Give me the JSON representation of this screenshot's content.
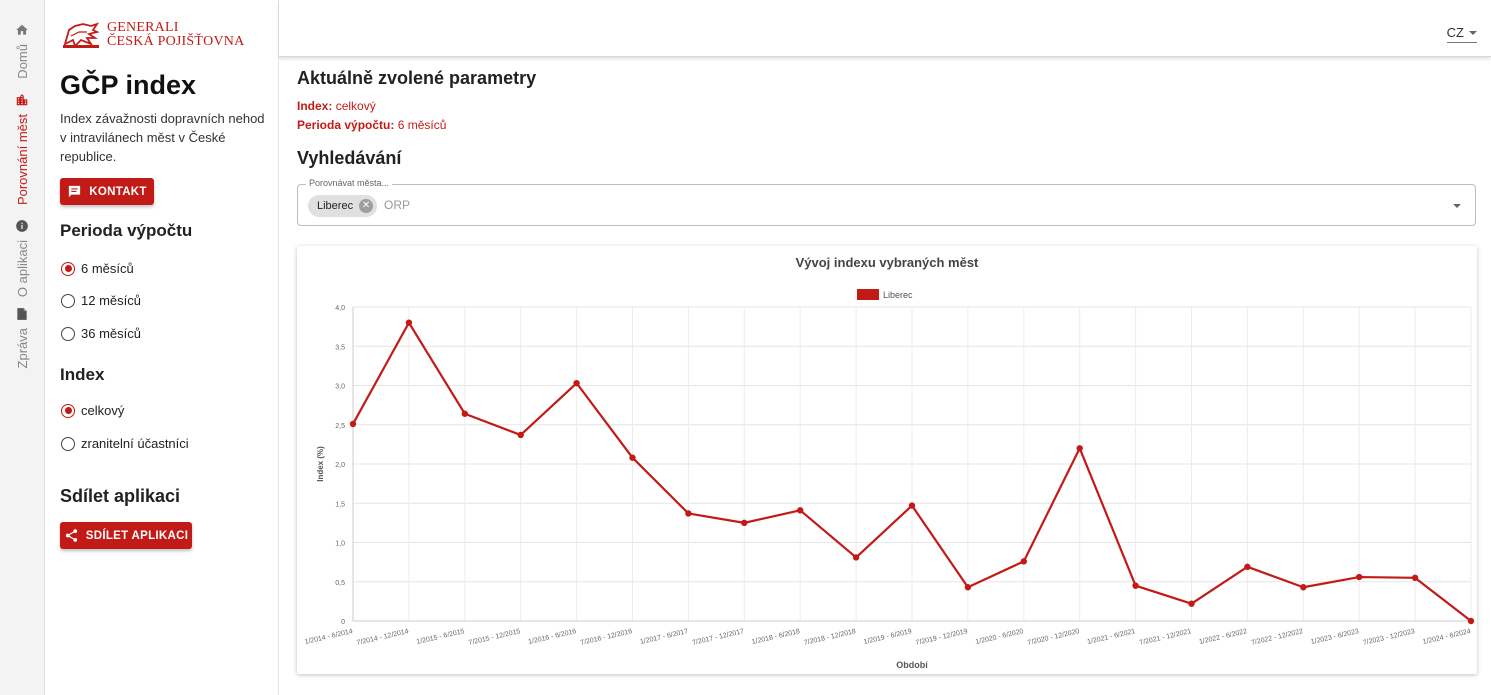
{
  "nav": {
    "items": [
      {
        "label": "Domů",
        "icon": "home-icon",
        "active": false
      },
      {
        "label": "Porovnání měst",
        "icon": "city-icon",
        "active": true
      },
      {
        "label": "O aplikaci",
        "icon": "info-icon",
        "active": false
      },
      {
        "label": "Zpráva",
        "icon": "document-icon",
        "active": false
      }
    ]
  },
  "brand": {
    "logo_line1": "GENERALI",
    "logo_line2": "ČESKÁ POJIŠŤOVNA",
    "color": "#c21b17"
  },
  "sidebar": {
    "title": "GČP index",
    "description": "Index závažnosti dopravních nehod v intravilánech měst v České republice.",
    "contact_button": "KONTAKT",
    "period_heading": "Perioda výpočtu",
    "period_options": [
      "6 měsíců",
      "12 měsíců",
      "36 měsíců"
    ],
    "period_selected": "6 měsíců",
    "index_heading": "Index",
    "index_options": [
      "celkový",
      "zranitelní účastníci"
    ],
    "index_selected": "celkový",
    "share_heading": "Sdílet aplikaci",
    "share_button": "SDÍLET APLIKACI"
  },
  "header": {
    "language": "CZ"
  },
  "params": {
    "heading": "Aktuálně zvolené parametry",
    "index_label": "Index:",
    "index_value": "celkový",
    "period_label": "Perioda výpočtu:",
    "period_value": "6 měsíců"
  },
  "search": {
    "heading": "Vyhledávání",
    "field_label": "Porovnávat města...",
    "chip": "Liberec",
    "placeholder": "ORP"
  },
  "chart_data": {
    "type": "line",
    "title": "Vývoj indexu vybraných měst",
    "xlabel": "Období",
    "ylabel": "Index (%)",
    "ylim": [
      0,
      4.0
    ],
    "yticks": [
      "0",
      "0,5",
      "1,0",
      "1,5",
      "2,0",
      "2,5",
      "3,0",
      "3,5",
      "4,0"
    ],
    "grid": true,
    "legend_position": "top-center",
    "categories": [
      "1/2014 - 6/2014",
      "7/2014 - 12/2014",
      "1/2015 - 6/2015",
      "7/2015 - 12/2015",
      "1/2016 - 6/2016",
      "7/2016 - 12/2016",
      "1/2017 - 6/2017",
      "7/2017 - 12/2017",
      "1/2018 - 6/2018",
      "7/2018 - 12/2018",
      "1/2019 - 6/2019",
      "7/2019 - 12/2019",
      "1/2020 - 6/2020",
      "7/2020 - 12/2020",
      "1/2021 - 6/2021",
      "7/2021 - 12/2021",
      "1/2022 - 6/2022",
      "7/2022 - 12/2022",
      "1/2023 - 6/2023",
      "7/2023 - 12/2023",
      "1/2024 - 6/2024"
    ],
    "series": [
      {
        "name": "Liberec",
        "color": "#c21b17",
        "values": [
          2.51,
          3.8,
          2.64,
          2.37,
          3.03,
          2.08,
          1.37,
          1.25,
          1.41,
          0.81,
          1.47,
          0.43,
          0.76,
          2.2,
          0.45,
          0.22,
          0.69,
          0.43,
          0.56,
          0.55,
          0.0
        ]
      }
    ]
  }
}
